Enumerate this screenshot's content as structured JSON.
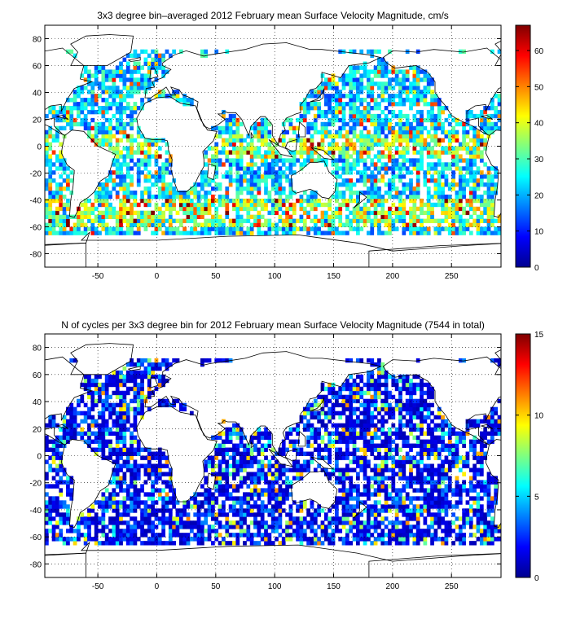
{
  "chart_data": [
    {
      "type": "heatmap",
      "title": "3x3 degree bin–averaged 2012 February mean Surface Velocity Magnitude, cm/s",
      "xlabel": "",
      "ylabel": "",
      "xlim": [
        -95,
        292
      ],
      "ylim": [
        -90,
        90
      ],
      "x_ticks": [
        -50,
        0,
        50,
        100,
        150,
        200,
        250
      ],
      "y_ticks": [
        -80,
        -60,
        -40,
        -20,
        0,
        20,
        40,
        60,
        80
      ],
      "grid": true,
      "bin_size_deg": 3,
      "colorbar": {
        "min": 0,
        "max": 67,
        "ticks": [
          0,
          10,
          20,
          30,
          40,
          50,
          60
        ]
      },
      "color_seed": 11
    },
    {
      "type": "heatmap",
      "title": "N of cycles per 3x3 degree bin for 2012 February mean Surface Velocity Magnitude (7544 in total)",
      "xlabel": "",
      "ylabel": "",
      "xlim": [
        -95,
        292
      ],
      "ylim": [
        -90,
        90
      ],
      "x_ticks": [
        -50,
        0,
        50,
        100,
        150,
        200,
        250
      ],
      "y_ticks": [
        -80,
        -60,
        -40,
        -20,
        0,
        20,
        40,
        60,
        80
      ],
      "grid": true,
      "bin_size_deg": 3,
      "colorbar": {
        "min": 0,
        "max": 15,
        "ticks": [
          0,
          5,
          10,
          15
        ]
      },
      "color_seed": 37
    }
  ]
}
